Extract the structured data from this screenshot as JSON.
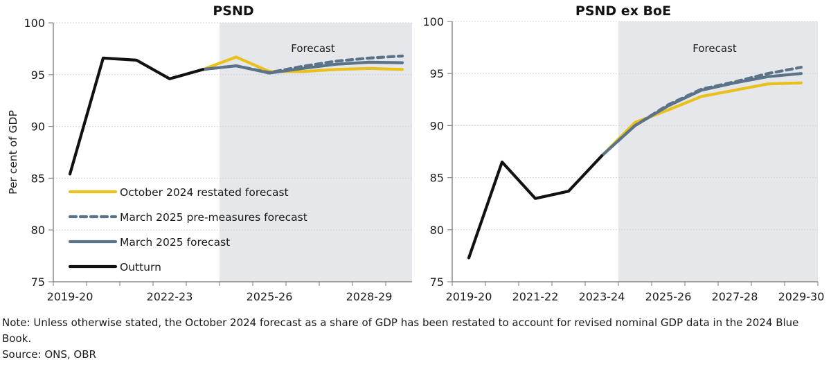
{
  "colors": {
    "october_2024": "#E8C11A",
    "march_2025": "#5B7389",
    "outturn": "#111111",
    "forecast_shading": "#E6E7EB",
    "grid": "#D4D4D4",
    "axis": "#8A8A8A"
  },
  "legend": [
    {
      "key": "october_2024",
      "label": "October 2024 restated forecast",
      "style": "solid"
    },
    {
      "key": "march_2025_pre",
      "label": "March 2025 pre-measures forecast",
      "style": "dashed"
    },
    {
      "key": "march_2025",
      "label": "March 2025 forecast",
      "style": "solid"
    },
    {
      "key": "outturn",
      "label": "Outturn",
      "style": "solid"
    }
  ],
  "notes": {
    "note": "Note: Unless otherwise stated, the October 2024 forecast as a share of GDP has been restated to account for revised nominal GDP data in the 2024 Blue Book.",
    "source": "Source: ONS, OBR"
  },
  "chart_data": [
    {
      "type": "line",
      "title": "PSND",
      "xlabel": "",
      "ylabel": "Per cent of GDP",
      "ylim": [
        75,
        100
      ],
      "yticks": [
        75,
        80,
        85,
        90,
        95,
        100
      ],
      "grid": true,
      "legend_position": "bottom-left",
      "forecast_label": "Forecast",
      "forecast_start": "2024-25",
      "categories": [
        "2019-20",
        "2020-21",
        "2021-22",
        "2022-23",
        "2023-24",
        "2024-25",
        "2025-26",
        "2026-27",
        "2027-28",
        "2028-29",
        "2029-30"
      ],
      "tick_labels": [
        "2019-20",
        "2022-23",
        "2025-26",
        "2028-29"
      ],
      "series": [
        {
          "name": "Outturn",
          "key": "outturn",
          "values": [
            85.4,
            96.6,
            96.4,
            94.6,
            95.5,
            null,
            null,
            null,
            null,
            null,
            null
          ]
        },
        {
          "name": "October 2024 restated forecast",
          "key": "october_2024",
          "values": [
            null,
            null,
            null,
            null,
            95.5,
            96.7,
            95.3,
            95.3,
            95.5,
            95.6,
            95.5
          ]
        },
        {
          "name": "March 2025 pre-measures forecast",
          "key": "march_2025_pre",
          "values": [
            null,
            null,
            null,
            null,
            95.5,
            95.85,
            95.2,
            95.8,
            96.3,
            96.6,
            96.8
          ]
        },
        {
          "name": "March 2025 forecast",
          "key": "march_2025",
          "values": [
            null,
            null,
            null,
            null,
            95.5,
            95.85,
            95.15,
            95.6,
            96.0,
            96.2,
            96.15
          ]
        }
      ]
    },
    {
      "type": "line",
      "title": "PSND ex BoE",
      "xlabel": "",
      "ylabel": "",
      "ylim": [
        75,
        100
      ],
      "yticks": [
        75,
        80,
        85,
        90,
        95,
        100
      ],
      "grid": true,
      "forecast_label": "Forecast",
      "forecast_start": "2024-25",
      "categories": [
        "2019-20",
        "2020-21",
        "2021-22",
        "2022-23",
        "2023-24",
        "2024-25",
        "2025-26",
        "2026-27",
        "2027-28",
        "2028-29",
        "2029-30"
      ],
      "tick_labels": [
        "2019-20",
        "2021-22",
        "2023-24",
        "2025-26",
        "2027-28",
        "2029-30"
      ],
      "series": [
        {
          "name": "Outturn",
          "key": "outturn",
          "values": [
            77.3,
            86.5,
            83.0,
            83.7,
            87.1,
            null,
            null,
            null,
            null,
            null,
            null
          ]
        },
        {
          "name": "October 2024 restated forecast",
          "key": "october_2024",
          "values": [
            null,
            null,
            null,
            null,
            87.1,
            90.3,
            91.5,
            92.8,
            93.4,
            94.0,
            94.1
          ]
        },
        {
          "name": "March 2025 pre-measures forecast",
          "key": "march_2025_pre",
          "values": [
            null,
            null,
            null,
            null,
            87.1,
            90.0,
            92.0,
            93.5,
            94.2,
            95.0,
            95.6
          ]
        },
        {
          "name": "March 2025 forecast",
          "key": "march_2025",
          "values": [
            null,
            null,
            null,
            null,
            87.1,
            90.0,
            91.9,
            93.4,
            94.1,
            94.7,
            95.0
          ]
        }
      ]
    }
  ]
}
